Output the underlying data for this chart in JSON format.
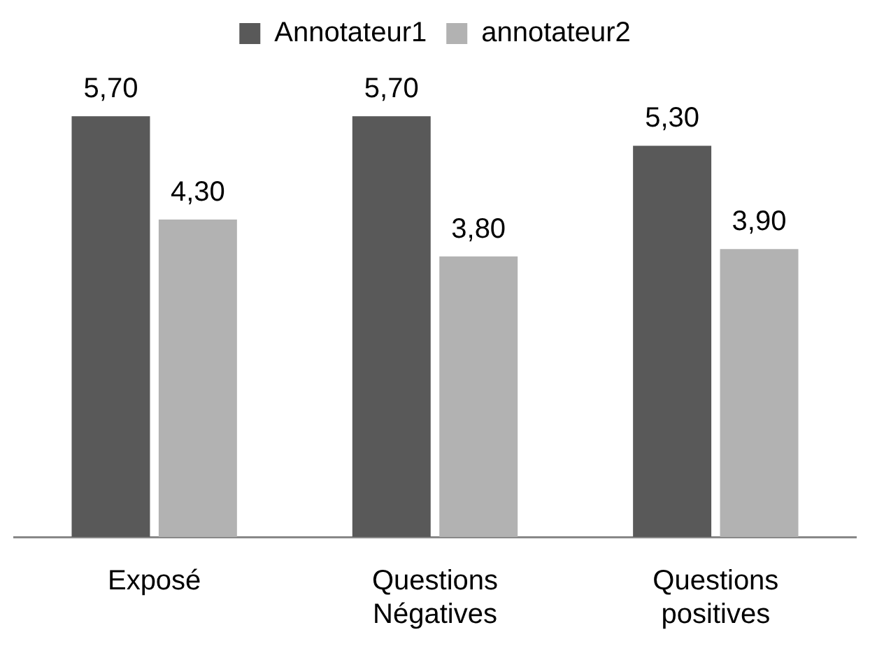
{
  "chart_data": {
    "type": "bar",
    "categories": [
      "Exposé",
      "Questions Négatives",
      "Questions positives"
    ],
    "series": [
      {
        "name": "Annotateur1",
        "color": "#595959",
        "values": [
          5.7,
          5.7,
          5.3
        ],
        "value_labels": [
          "5,70",
          "5,70",
          "5,30"
        ]
      },
      {
        "name": "annotateur2",
        "color": "#b2b2b2",
        "values": [
          4.3,
          3.8,
          3.9
        ],
        "value_labels": [
          "4,30",
          "3,80",
          "3,90"
        ]
      }
    ],
    "legend": "top",
    "grid": false
  }
}
